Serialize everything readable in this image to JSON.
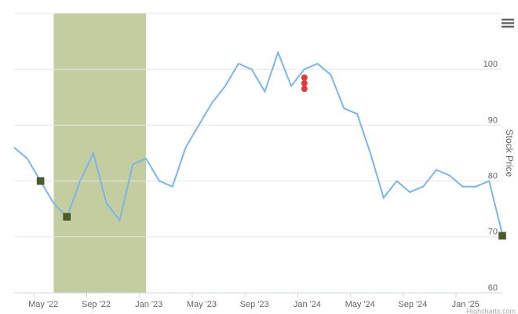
{
  "chart_data": {
    "type": "line",
    "y_axis_title": "Stock Price",
    "credits": "Highcharts.com",
    "x": [
      "2022-03",
      "2022-04",
      "2022-05",
      "2022-06",
      "2022-07",
      "2022-08",
      "2022-09",
      "2022-10",
      "2022-11",
      "2022-12",
      "2023-01",
      "2023-02",
      "2023-03",
      "2023-04",
      "2023-05",
      "2023-06",
      "2023-07",
      "2023-08",
      "2023-09",
      "2023-10",
      "2023-11",
      "2023-12",
      "2024-01",
      "2024-02",
      "2024-03",
      "2024-04",
      "2024-05",
      "2024-06",
      "2024-07",
      "2024-08",
      "2024-09",
      "2024-10",
      "2024-11",
      "2024-12",
      "2025-01",
      "2025-02",
      "2025-03",
      "2025-04"
    ],
    "series": [
      {
        "color": "#7cb5ec",
        "values": [
          86,
          84,
          80,
          76,
          73.5,
          80,
          85,
          76,
          73,
          83,
          84,
          80,
          79,
          86,
          90,
          94,
          97,
          101,
          100,
          96,
          103,
          97,
          100,
          101,
          99,
          93,
          92,
          85,
          77,
          80,
          78,
          79,
          82,
          81,
          79,
          79,
          80,
          70.5
        ]
      }
    ],
    "markers": [
      {
        "color": "#4b5d23",
        "shape": "square",
        "x": [
          "2022-05",
          "2022-07",
          "2025-04"
        ],
        "values": [
          80,
          73.6,
          70.2
        ]
      },
      {
        "color": "#e03c3c",
        "shape": "circle",
        "x": [
          "2024-01",
          "2024-01",
          "2024-01"
        ],
        "values": [
          96.5,
          97.5,
          98.5
        ]
      }
    ],
    "plot_band": {
      "from": "2022-06",
      "to": "2023-01",
      "color": "#c3cd9f"
    },
    "xlim": [
      "2022-03",
      "2025-04"
    ],
    "xticks": [
      {
        "value": "2022-05",
        "label": "May '22"
      },
      {
        "value": "2022-09",
        "label": "Sep '22"
      },
      {
        "value": "2023-01",
        "label": "Jan '23"
      },
      {
        "value": "2023-05",
        "label": "May '23"
      },
      {
        "value": "2023-09",
        "label": "Sep '23"
      },
      {
        "value": "2024-01",
        "label": "Jan '24"
      },
      {
        "value": "2024-05",
        "label": "May '24"
      },
      {
        "value": "2024-09",
        "label": "Sep '24"
      },
      {
        "value": "2025-01",
        "label": "Jan '25"
      }
    ],
    "ylim": [
      60,
      110
    ],
    "yticks": [
      60,
      70,
      80,
      90,
      100
    ],
    "grid": true
  }
}
